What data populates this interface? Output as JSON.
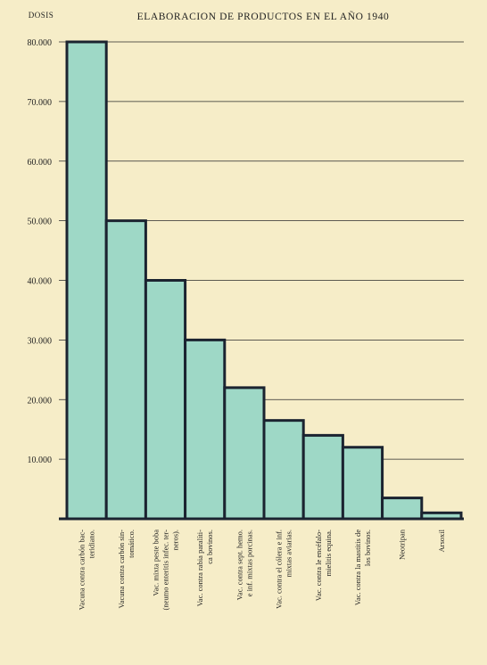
{
  "chart_data": {
    "type": "bar",
    "title": "ELABORACION DE PRODUCTOS EN EL AÑO 1940",
    "ylabel": "DOSIS",
    "xlabel": "",
    "ylim": [
      0,
      80000
    ],
    "yticks": [
      10000,
      20000,
      30000,
      40000,
      50000,
      60000,
      70000,
      80000
    ],
    "ytick_labels": [
      "10.000",
      "20.000",
      "30.000",
      "40.000",
      "50.000",
      "60.000",
      "70.000",
      "80.000"
    ],
    "grid": "horizontal",
    "bar_color": "#9ed8c6",
    "edge_color": "#1b2330",
    "categories": [
      [
        "Vacuna contra carbón bac-",
        "teridiano."
      ],
      [
        "Vacuna contra carbón sin-",
        "tomático."
      ],
      [
        "Vac. mixta peste boba",
        "(neumo enteritis infec. ter-",
        "neros)."
      ],
      [
        "Vac. contra rabia paralíti-",
        "ca bovinos."
      ],
      [
        "Vac. contra sept. hemo.",
        "e inf. mixtas porcinas."
      ],
      [
        "Vac. contra el cólera e inf.",
        "mixtas aviarias."
      ],
      [
        "Vac. contra le encéfalo-",
        "mielitis equina."
      ],
      [
        "Vac. contra la mastitis de",
        "los bovinos."
      ],
      [
        "Neotripan"
      ],
      [
        "Arsoxil"
      ]
    ],
    "values": [
      80000,
      50000,
      40000,
      30000,
      22000,
      16500,
      14000,
      12000,
      3500,
      1000
    ]
  }
}
